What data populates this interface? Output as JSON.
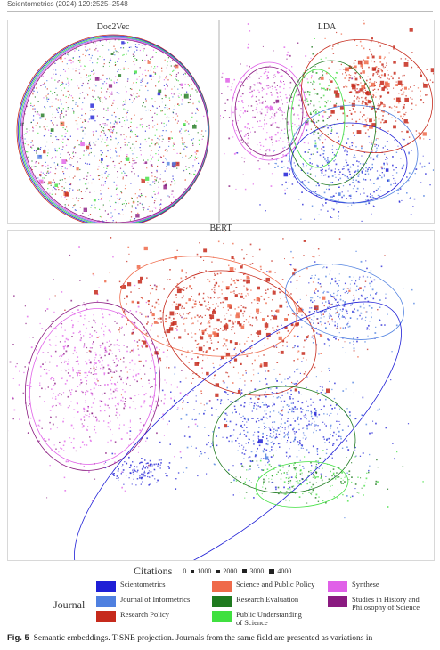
{
  "running_head": "Scientometrics (2024) 129:2525–2548",
  "panels": {
    "doc2vec": "Doc2Vec",
    "lda": "LDA",
    "bert": "BERT"
  },
  "legend": {
    "citations_title": "Citations",
    "citations_items": [
      "0",
      "1000",
      "2000",
      "3000",
      "4000"
    ],
    "journal_title": "Journal",
    "journals": [
      {
        "name": "Scientometrics",
        "color": "#1f1fd6"
      },
      {
        "name": "Journal of Informetrics",
        "color": "#4f80e0"
      },
      {
        "name": "Research Policy",
        "color": "#c62a1c"
      },
      {
        "name": "Science and Public Policy",
        "color": "#ef6a4a"
      },
      {
        "name": "Research Evaluation",
        "color": "#1f7a1f"
      },
      {
        "name": "Public Understanding of Science",
        "color": "#40e040"
      },
      {
        "name": "Synthese",
        "color": "#e060e8"
      },
      {
        "name": "Studies in History and Philosophy of Science",
        "color": "#8a1a80"
      }
    ]
  },
  "caption": {
    "label": "Fig. 5",
    "text": "Semantic embeddings. T-SNE projection. Journals from the same field are presented as variations in"
  }
}
